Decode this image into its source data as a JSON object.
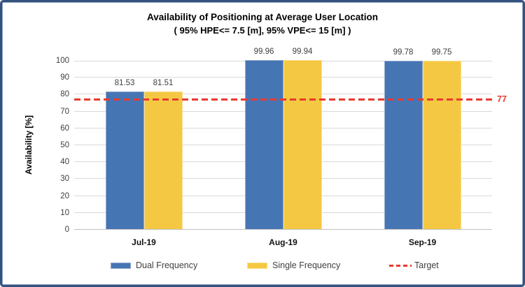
{
  "window": {
    "background": "#FFFFFF",
    "border_color": "#35517E"
  },
  "chart_data": {
    "type": "bar",
    "title": "Availability of Positioning at Average User Location",
    "subtitle": "( 95% HPE<= 7.5 [m], 95% VPE<= 15 [m] )",
    "xlabel": "",
    "ylabel": "Availability [%]",
    "categories": [
      "Jul-19",
      "Aug-19",
      "Sep-19"
    ],
    "series": [
      {
        "name": "Dual Frequency",
        "color": "#4675B4",
        "border_color": "#93ABCD",
        "values": [
          81.53,
          99.96,
          99.78
        ]
      },
      {
        "name": "Single Frequency",
        "color": "#F4C842",
        "border_color": "#F9E08F",
        "values": [
          81.51,
          99.94,
          99.75
        ]
      }
    ],
    "target_line": {
      "name": "Target",
      "value": 77,
      "label": "77",
      "color": "#E8392E"
    },
    "ylim": [
      0,
      100
    ],
    "ytick_step": 10,
    "grid": true,
    "gridline_color": "#D9D9D9",
    "axisline_color": "#BFBFBF",
    "value_labels": true,
    "legend_position": "bottom"
  }
}
